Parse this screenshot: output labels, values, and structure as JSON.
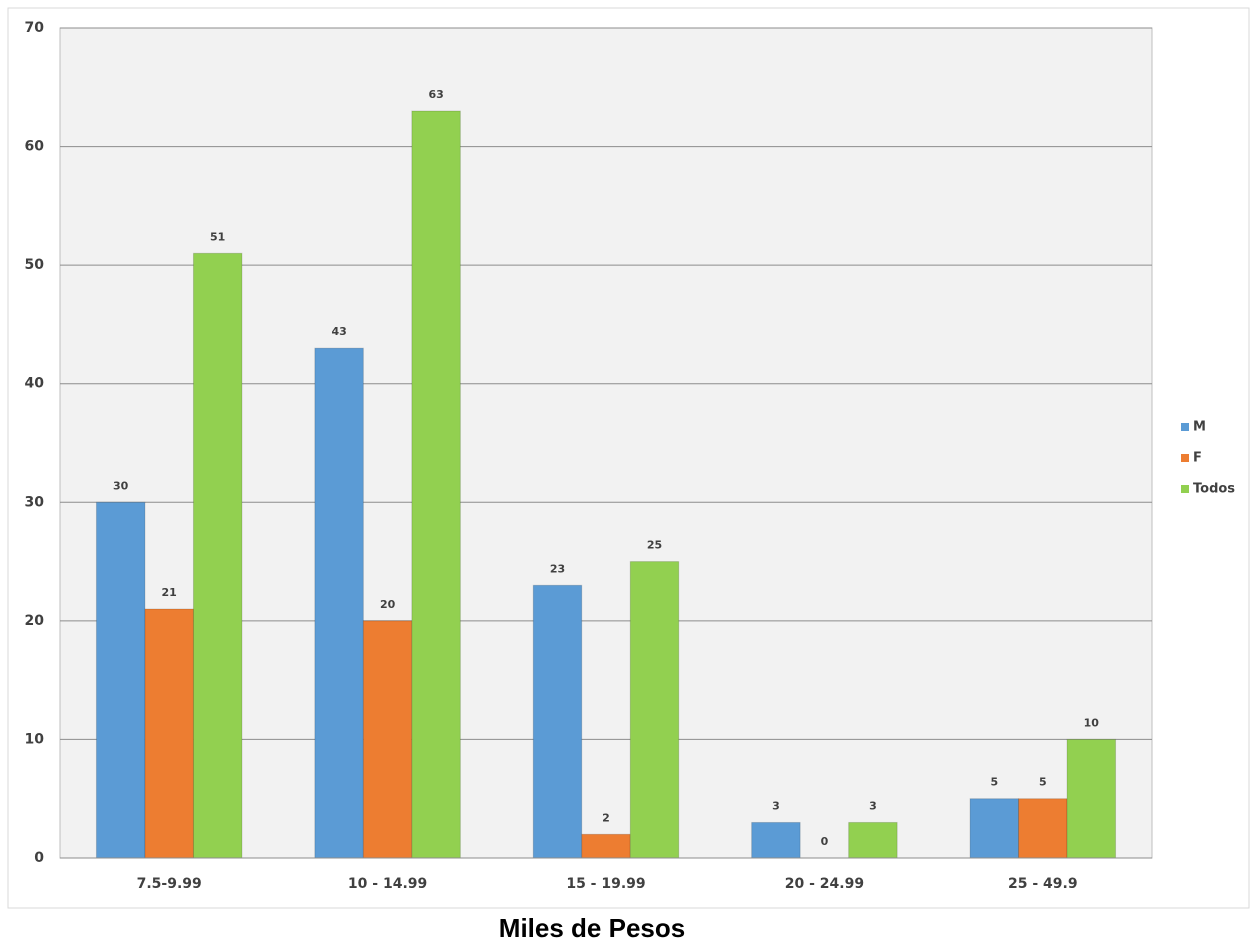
{
  "chart_data": {
    "type": "bar",
    "x_label": "Miles de Pesos",
    "categories": [
      "7.5-9.99",
      "10 - 14.99",
      "15 - 19.99",
      "20 - 24.99",
      "25 - 49.9"
    ],
    "series": [
      {
        "name": "M",
        "color": "#5b9bd5",
        "values": [
          30,
          43,
          23,
          3,
          5
        ]
      },
      {
        "name": "F",
        "color": "#ed7d31",
        "values": [
          21,
          20,
          2,
          0,
          5
        ]
      },
      {
        "name": "Todos",
        "color": "#92d050",
        "values": [
          51,
          63,
          25,
          3,
          10
        ]
      }
    ],
    "ylim": [
      0,
      70
    ],
    "yticks": [
      0,
      10,
      20,
      30,
      40,
      50,
      60,
      70
    ],
    "grid": true,
    "legend": "right"
  }
}
